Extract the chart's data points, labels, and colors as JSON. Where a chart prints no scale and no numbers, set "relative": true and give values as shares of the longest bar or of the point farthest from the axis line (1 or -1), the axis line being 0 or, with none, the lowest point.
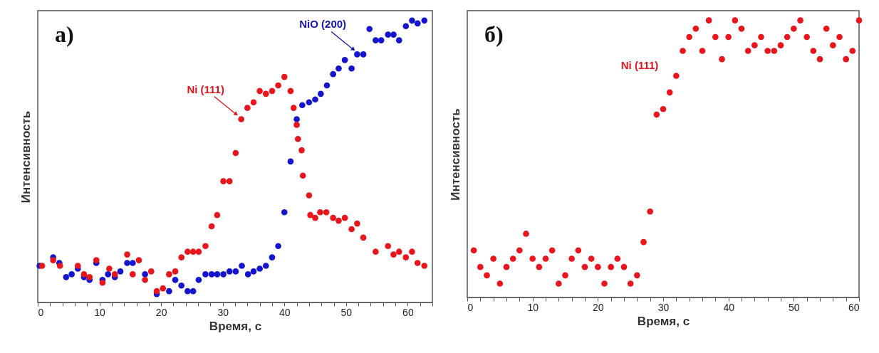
{
  "chart_data": [
    {
      "type": "scatter",
      "relative": true,
      "marker": "circle",
      "xlabel": "Время, с",
      "ylabel": "Интенсивность",
      "xlim": [
        0,
        64
      ],
      "xticks": [
        0,
        {
          "value": 2,
          "label": null
        },
        {
          "value": 4,
          "label": null
        },
        {
          "value": 6,
          "label": null
        },
        {
          "value": 8,
          "label": null
        },
        10,
        {
          "value": 12,
          "label": null
        },
        {
          "value": 14,
          "label": null
        },
        {
          "value": 16,
          "label": null
        },
        {
          "value": 18,
          "label": null
        },
        20,
        {
          "value": 22,
          "label": null
        },
        {
          "value": 24,
          "label": null
        },
        {
          "value": 26,
          "label": null
        },
        {
          "value": 28,
          "label": null
        },
        30,
        {
          "value": 32,
          "label": null
        },
        {
          "value": 34,
          "label": null
        },
        {
          "value": 36,
          "label": null
        },
        {
          "value": 38,
          "label": null
        },
        40,
        {
          "value": 42,
          "label": null
        },
        {
          "value": 44,
          "label": null
        },
        {
          "value": 46,
          "label": null
        },
        {
          "value": 48,
          "label": null
        },
        50,
        {
          "value": 52,
          "label": null
        },
        {
          "value": 54,
          "label": null
        },
        {
          "value": 56,
          "label": null
        },
        {
          "value": 58,
          "label": null
        },
        60,
        {
          "value": 62,
          "label": null
        },
        {
          "value": 64,
          "label": null
        }
      ],
      "annotations": [
        "а)",
        {
          "text": "Ni (111)",
          "x": 33,
          "y": 0.65
        },
        {
          "text": "NiO (200)",
          "x": 52,
          "y": 0.88
        }
      ],
      "series": [
        {
          "color": "#1515d0",
          "x": [
            0.3,
            2.5,
            3.5,
            4.6,
            5.5,
            6.5,
            7.5,
            8.4,
            9.5,
            10.5,
            11.4,
            12.5,
            13.4,
            14.5,
            15.4,
            17.4,
            19.3,
            21.3,
            22.3,
            23.3,
            24.3,
            25.2,
            26.1,
            27.2,
            28.2,
            29.1,
            30.1,
            31.1,
            32.1,
            33.1,
            34.1,
            35,
            36,
            37,
            38,
            39,
            40,
            41,
            42,
            42.9,
            44,
            45,
            45.9,
            46.9,
            47.9,
            48.8,
            49.8,
            50.9,
            51.8,
            52.8,
            53.8,
            54.8,
            55.7,
            56.8,
            57.7,
            58.6,
            59.7,
            60.7,
            61.6,
            62.7
          ],
          "values": [
            0.13,
            0.16,
            0.14,
            0.09,
            0.1,
            0.12,
            0.09,
            0.08,
            0.14,
            0.08,
            0.1,
            0.09,
            0.11,
            0.14,
            0.14,
            0.1,
            0.03,
            0.04,
            0.08,
            0.06,
            0.04,
            0.04,
            0.08,
            0.1,
            0.1,
            0.1,
            0.1,
            0.11,
            0.11,
            0.13,
            0.1,
            0.11,
            0.12,
            0.13,
            0.16,
            0.2,
            0.32,
            0.5,
            0.65,
            0.7,
            0.71,
            0.72,
            0.74,
            0.77,
            0.81,
            0.83,
            0.86,
            0.83,
            0.88,
            0.88,
            0.97,
            0.93,
            0.93,
            0.95,
            0.95,
            0.93,
            0.98,
            1,
            0.99,
            1
          ]
        },
        {
          "color": "#e8161c",
          "x": [
            0.7,
            2.5,
            3.6,
            6.5,
            7.5,
            8.4,
            9.5,
            10.5,
            11.6,
            12.5,
            14.5,
            15.4,
            16.4,
            17.4,
            18.4,
            19.3,
            20.3,
            21.3,
            22.3,
            23.3,
            24.3,
            25.2,
            26.1,
            27.2,
            28.2,
            29.1,
            30.1,
            31.1,
            32.1,
            33,
            34,
            35,
            36,
            37,
            38,
            39,
            40,
            41,
            41.5,
            42,
            42.2,
            42.8,
            43,
            44,
            44.2,
            45,
            45.8,
            46.8,
            47.9,
            48.8,
            49.8,
            50.9,
            51.8,
            52.8,
            54.8,
            56.8,
            57.7,
            58.6,
            59.7,
            60.7,
            61.6,
            62.7
          ],
          "values": [
            0.13,
            0.15,
            0.13,
            0.13,
            0.1,
            0.09,
            0.15,
            0.07,
            0.12,
            0.1,
            0.17,
            0.1,
            0.15,
            0.08,
            0.11,
            0.04,
            0.05,
            0.1,
            0.11,
            0.16,
            0.18,
            0.18,
            0.18,
            0.2,
            0.27,
            0.31,
            0.43,
            0.43,
            0.53,
            0.65,
            0.69,
            0.71,
            0.75,
            0.74,
            0.75,
            0.77,
            0.8,
            0.75,
            0.69,
            0.63,
            0.58,
            0.54,
            0.45,
            0.38,
            0.31,
            0.3,
            0.32,
            0.32,
            0.3,
            0.29,
            0.3,
            0.26,
            0.28,
            0.23,
            0.18,
            0.2,
            0.17,
            0.18,
            0.16,
            0.18,
            0.14,
            0.13
          ]
        }
      ]
    },
    {
      "type": "scatter",
      "relative": true,
      "marker": "circle",
      "xlabel": "Время, с",
      "ylabel": "Интенсивность",
      "xlim": [
        0,
        60
      ],
      "xticks": [
        0,
        {
          "value": 2,
          "label": null
        },
        {
          "value": 4,
          "label": null
        },
        {
          "value": 6,
          "label": null
        },
        {
          "value": 8,
          "label": null
        },
        10,
        {
          "value": 12,
          "label": null
        },
        {
          "value": 14,
          "label": null
        },
        {
          "value": 16,
          "label": null
        },
        {
          "value": 18,
          "label": null
        },
        20,
        {
          "value": 22,
          "label": null
        },
        {
          "value": 24,
          "label": null
        },
        {
          "value": 26,
          "label": null
        },
        {
          "value": 28,
          "label": null
        },
        30,
        {
          "value": 32,
          "label": null
        },
        {
          "value": 34,
          "label": null
        },
        {
          "value": 36,
          "label": null
        },
        {
          "value": 38,
          "label": null
        },
        40,
        {
          "value": 42,
          "label": null
        },
        {
          "value": 44,
          "label": null
        },
        {
          "value": 46,
          "label": null
        },
        {
          "value": 48,
          "label": null
        },
        50,
        {
          "value": 52,
          "label": null
        },
        {
          "value": 54,
          "label": null
        },
        {
          "value": 56,
          "label": null
        },
        {
          "value": 58,
          "label": null
        },
        60
      ],
      "annotations": [
        "б)",
        "Ni (111)"
      ],
      "x": [
        1,
        2,
        3,
        4,
        5,
        6,
        7,
        8,
        9,
        10,
        11,
        12,
        13,
        14,
        15,
        16,
        17,
        18,
        19,
        20,
        21,
        22,
        23,
        24,
        25,
        26,
        27,
        28,
        29,
        30,
        31,
        32,
        33,
        34,
        35,
        36,
        37,
        38,
        39,
        40,
        41,
        42,
        43,
        44,
        45,
        46,
        47,
        48,
        49,
        50,
        51,
        52,
        53,
        54,
        55,
        56,
        57,
        58,
        59,
        60
      ],
      "series": [
        {
          "color": "#e8161c",
          "values": [
            0.17,
            0.11,
            0.08,
            0.14,
            0.05,
            0.11,
            0.14,
            0.17,
            0.23,
            0.14,
            0.11,
            0.14,
            0.17,
            0.05,
            0.08,
            0.14,
            0.17,
            0.11,
            0.14,
            0.11,
            0.05,
            0.11,
            0.14,
            0.11,
            0.05,
            0.08,
            0.2,
            0.31,
            0.66,
            0.68,
            0.74,
            0.8,
            0.89,
            0.94,
            0.97,
            0.89,
            1,
            0.94,
            0.86,
            0.94,
            1,
            0.97,
            0.89,
            0.91,
            0.94,
            0.89,
            0.89,
            0.91,
            0.94,
            0.97,
            1,
            0.94,
            0.89,
            0.86,
            0.97,
            0.91,
            0.94,
            0.86,
            0.89,
            1
          ]
        }
      ]
    }
  ]
}
